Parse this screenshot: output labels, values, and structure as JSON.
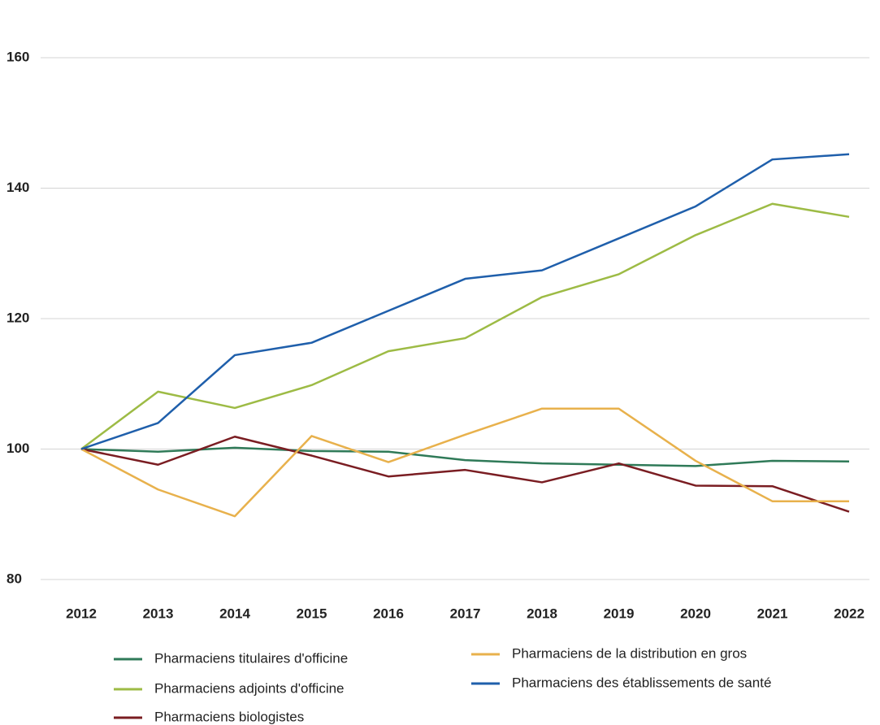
{
  "chart_data": {
    "type": "line",
    "x": [
      "2012",
      "2013",
      "2014",
      "2015",
      "2016",
      "2017",
      "2018",
      "2019",
      "2020",
      "2021",
      "2022"
    ],
    "series": [
      {
        "name": "Pharmaciens titulaires d'officine",
        "color": "#2f7a58",
        "values": [
          100,
          99.6,
          100.2,
          99.7,
          99.6,
          98.3,
          97.8,
          97.6,
          97.4,
          98.2,
          98.1
        ]
      },
      {
        "name": "Pharmaciens adjoints d'officine",
        "color": "#9dbb45",
        "values": [
          100,
          108.8,
          106.3,
          109.8,
          115,
          117,
          123.3,
          126.8,
          132.8,
          137.6,
          135.6
        ]
      },
      {
        "name": "Pharmaciens biologistes",
        "color": "#7a1d22",
        "values": [
          100,
          97.6,
          101.9,
          99,
          95.8,
          96.8,
          94.9,
          97.8,
          94.4,
          94.3,
          90.4
        ]
      },
      {
        "name": "Pharmaciens de la distribution en gros",
        "color": "#e8b14c",
        "values": [
          100,
          93.8,
          89.7,
          102,
          98,
          102.2,
          106.2,
          106.2,
          98.2,
          92,
          92
        ]
      },
      {
        "name": "Pharmaciens des établissements de santé",
        "color": "#1f5fab",
        "values": [
          100,
          104,
          114.4,
          116.3,
          121.2,
          126.1,
          127.4,
          132.3,
          137.2,
          144.4,
          145.2
        ]
      }
    ],
    "ylim": [
      80,
      160
    ],
    "yticks": [
      80,
      100,
      120,
      140,
      160
    ],
    "grid": true
  }
}
